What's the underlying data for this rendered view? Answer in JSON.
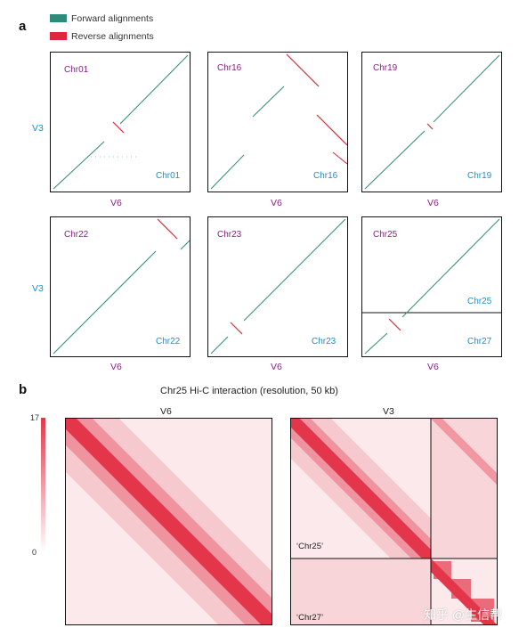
{
  "panel_a": {
    "letter": "a"
  },
  "panel_b": {
    "letter": "b"
  },
  "legend": {
    "forward": {
      "label": "Forward alignments",
      "color": "#2e8a7a"
    },
    "reverse": {
      "label": "Reverse alignments",
      "color": "#e0263c"
    }
  },
  "dotplots": [
    {
      "chr_top": "Chr01",
      "chr_bottom": "Chr01"
    },
    {
      "chr_top": "Chr16",
      "chr_bottom": "Chr16"
    },
    {
      "chr_top": "Chr19",
      "chr_bottom": "Chr19"
    },
    {
      "chr_top": "Chr22",
      "chr_bottom": "Chr22"
    },
    {
      "chr_top": "Chr23",
      "chr_bottom": "Chr23"
    },
    {
      "chr_top": "Chr25",
      "chr_bottom": "Chr25",
      "chr_bottom_2": "Chr27"
    }
  ],
  "axes": {
    "x": "V6",
    "y": "V3"
  },
  "hic": {
    "title": "Chr25  Hi-C interaction (resolution, 50 kb)",
    "left_label": "V6",
    "right_label": "V3",
    "right_top_chr": "‘Chr25’",
    "right_bottom_chr": "‘Chr27’",
    "colorbar_max": "17",
    "colorbar_min": "0",
    "colorbar_color": "#e3364a"
  },
  "watermark": "知乎 @生信帮"
}
